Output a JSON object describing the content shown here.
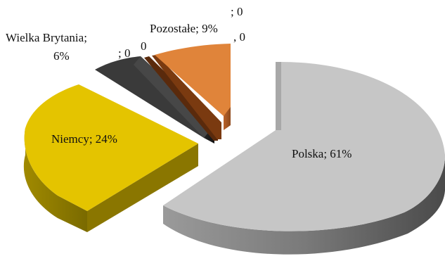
{
  "chart_data": {
    "type": "pie",
    "style": "3d-exploded",
    "title": "",
    "categories": [
      "Polska",
      "Niemcy",
      "Wielka Brytania",
      "",
      "",
      "Pozostałe"
    ],
    "values": [
      61,
      24,
      6,
      0,
      0,
      9
    ],
    "colors": [
      "#c6c6c6",
      "#e4c400",
      "#3a3a3a",
      "#6b3010",
      "#7a3a10",
      "#e0843a"
    ],
    "labels": {
      "polska": "Polska; 61%",
      "niemcy": "Niemcy; 24%",
      "wb_line1": "Wielka Brytania;",
      "wb_line2": "6%",
      "zero_a_line1": "; 0",
      "zero_a_line2": "0",
      "zero_b_line1": "; 0",
      "zero_b_line2": ", 0",
      "pozostale": "Pozostałe; 9%"
    }
  }
}
